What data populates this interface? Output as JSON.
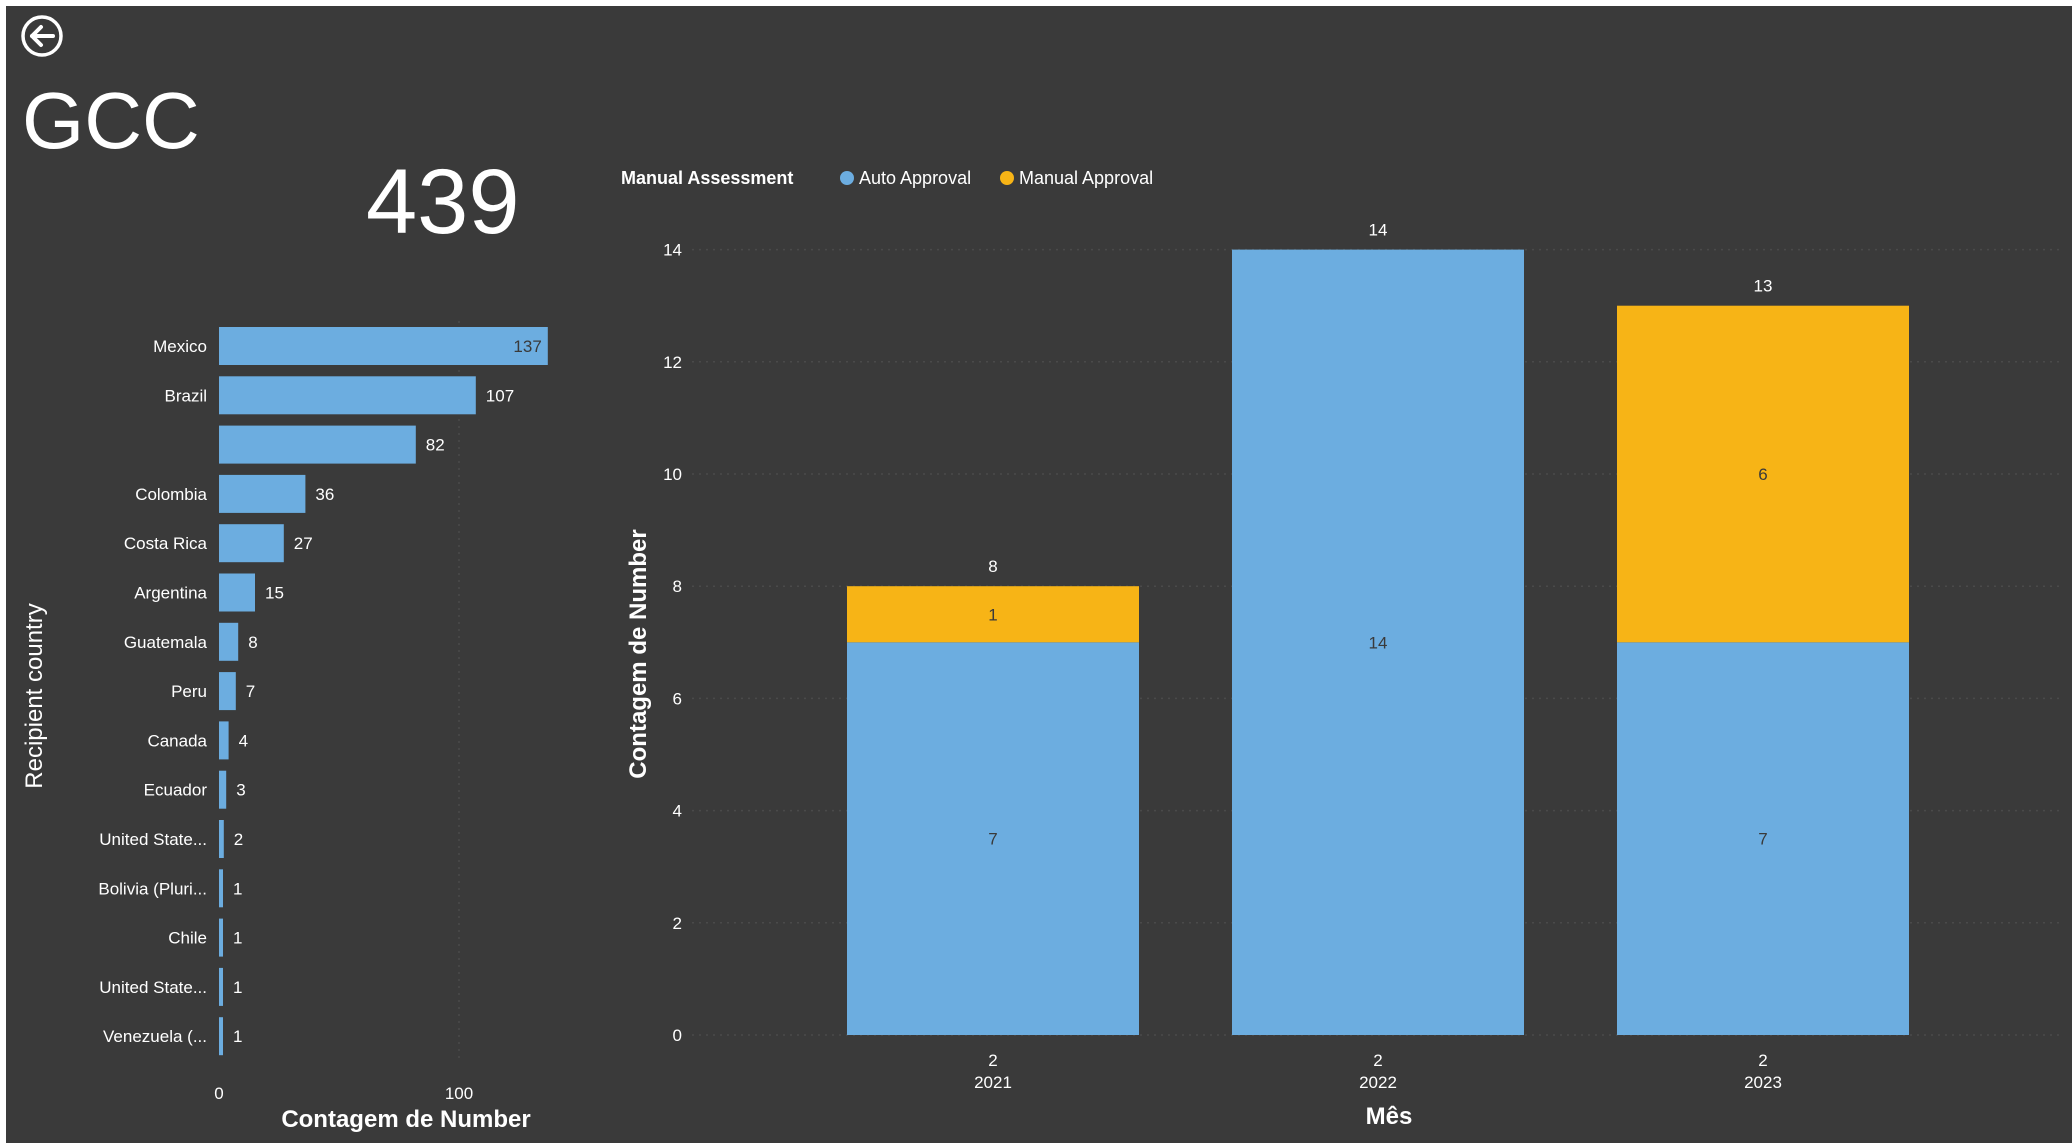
{
  "page": {
    "back_icon": "back-arrow-icon",
    "title": "GCC",
    "kpi_value": "439"
  },
  "chart_data": [
    {
      "type": "bar",
      "orientation": "horizontal",
      "title": "",
      "xlabel": "Contagem de Number",
      "ylabel": "Recipient country",
      "categories": [
        "Mexico",
        "Brazil",
        "",
        "Colombia",
        "Costa Rica",
        "Argentina",
        "Guatemala",
        "Peru",
        "Canada",
        "Ecuador",
        "United State...",
        "Bolivia (Pluri...",
        "Chile",
        "United State...",
        "Venezuela (..."
      ],
      "values": [
        137,
        107,
        82,
        36,
        27,
        15,
        8,
        7,
        4,
        3,
        2,
        1,
        1,
        1,
        1
      ],
      "x_ticks": [
        "0",
        "100"
      ],
      "xlim": [
        0,
        137
      ],
      "grid": true,
      "color": "#6cade0"
    },
    {
      "type": "bar",
      "stacked": true,
      "title": "",
      "legend_title": "Manual Assessment",
      "legend_position": "top-left",
      "xlabel": "Mês",
      "ylabel": "Contagem de Number",
      "categories": [
        {
          "top": "2",
          "bottom": "2021"
        },
        {
          "top": "2",
          "bottom": "2022"
        },
        {
          "top": "2",
          "bottom": "2023"
        }
      ],
      "series": [
        {
          "name": "Auto Approval",
          "color": "#6cade0",
          "values": [
            7,
            14,
            7
          ]
        },
        {
          "name": "Manual Approval",
          "color": "#f7b416",
          "values": [
            1,
            0,
            6
          ]
        }
      ],
      "totals": [
        8,
        14,
        13
      ],
      "y_ticks": [
        "0",
        "2",
        "4",
        "6",
        "8",
        "10",
        "12",
        "14"
      ],
      "ylim": [
        0,
        14
      ],
      "grid": true
    }
  ]
}
